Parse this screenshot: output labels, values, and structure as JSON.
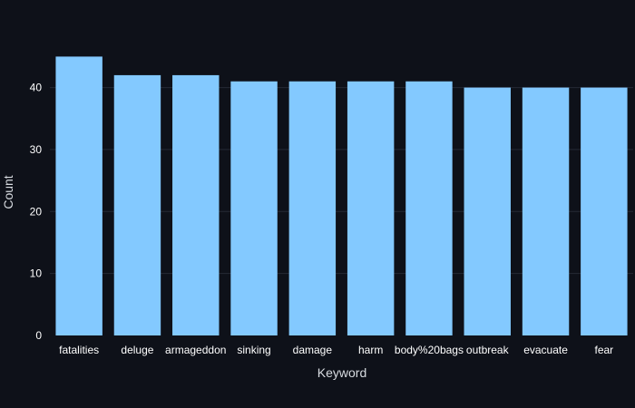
{
  "chart_data": {
    "type": "bar",
    "title": "",
    "xlabel": "Keyword",
    "ylabel": "Count",
    "categories": [
      "fatalities",
      "deluge",
      "armageddon",
      "sinking",
      "damage",
      "harm",
      "body%20bags",
      "outbreak",
      "evacuate",
      "fear"
    ],
    "values": [
      45,
      42,
      42,
      41,
      41,
      41,
      41,
      40,
      40,
      40
    ],
    "ylim": [
      0,
      47.4
    ],
    "yticks": [
      0,
      10,
      20,
      30,
      40
    ],
    "grid": true,
    "legend": "none",
    "colors": {
      "background": "#0e1119",
      "bar": "#83c9ff",
      "grid": "#262a35",
      "text": "#ffffff",
      "axis_label": "#d7dbe0"
    }
  }
}
